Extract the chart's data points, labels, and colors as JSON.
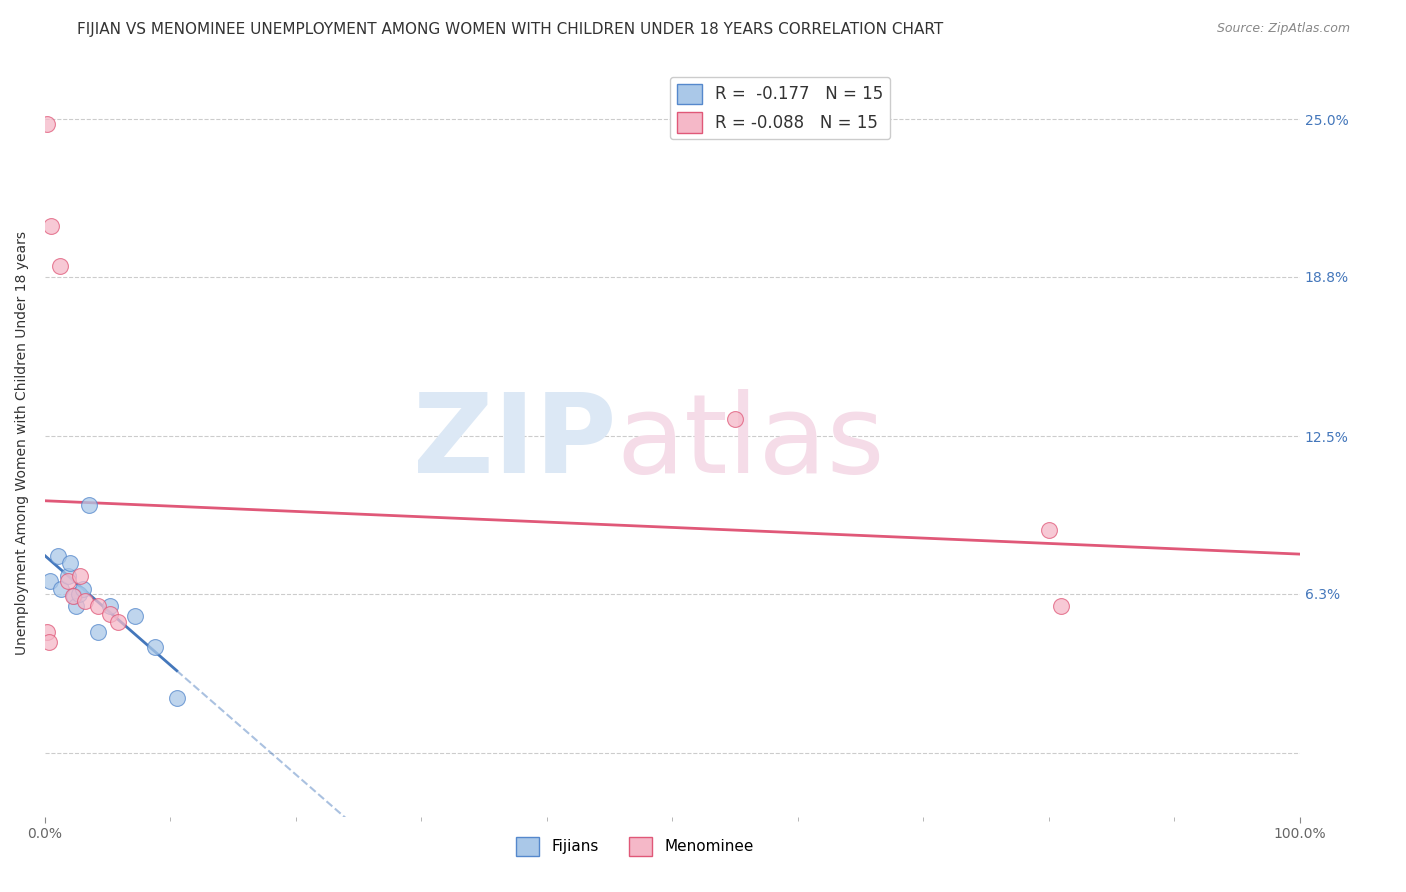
{
  "title": "FIJIAN VS MENOMINEE UNEMPLOYMENT AMONG WOMEN WITH CHILDREN UNDER 18 YEARS CORRELATION CHART",
  "source": "Source: ZipAtlas.com",
  "ylabel": "Unemployment Among Women with Children Under 18 years",
  "xlim": [
    0,
    100
  ],
  "ylim": [
    -2.5,
    27
  ],
  "background_color": "#ffffff",
  "grid_color": "#cccccc",
  "fijian_color": "#aac8e8",
  "fijian_edge_color": "#5588cc",
  "menominee_color": "#f5b8c8",
  "menominee_edge_color": "#e05878",
  "fijian_line_color": "#4477bb",
  "menominee_line_color": "#e05878",
  "fijian_R": -0.177,
  "fijian_N": 15,
  "menominee_R": -0.088,
  "menominee_N": 15,
  "fijian_x": [
    0.4,
    1.0,
    1.3,
    1.8,
    2.0,
    2.3,
    2.5,
    2.7,
    3.0,
    3.5,
    4.2,
    5.2,
    7.2,
    8.8,
    10.5
  ],
  "fijian_y": [
    6.8,
    7.8,
    6.5,
    7.0,
    7.5,
    6.2,
    5.8,
    6.3,
    6.5,
    9.8,
    4.8,
    5.8,
    5.4,
    4.2,
    2.2
  ],
  "menominee_x": [
    0.2,
    0.5,
    1.2,
    1.8,
    2.2,
    2.8,
    3.2,
    4.2,
    5.2,
    5.8,
    55.0,
    80.0,
    81.0,
    0.15,
    0.35
  ],
  "menominee_y": [
    24.8,
    20.8,
    19.2,
    6.8,
    6.2,
    7.0,
    6.0,
    5.8,
    5.5,
    5.2,
    13.2,
    8.8,
    5.8,
    4.8,
    4.4
  ],
  "ytick_positions": [
    0,
    6.3,
    12.5,
    18.8,
    25.0
  ],
  "ytick_labels_right": [
    "",
    "6.3%",
    "12.5%",
    "18.8%",
    "25.0%"
  ],
  "xtick_main": [
    0,
    100
  ],
  "xtick_minor": [
    10,
    20,
    30,
    40,
    50,
    60,
    70,
    80,
    90
  ],
  "scatter_size": 130,
  "title_fontsize": 11,
  "label_fontsize": 10,
  "tick_fontsize": 10,
  "legend_fontsize": 12,
  "watermark_color_blue": "#dce8f5",
  "watermark_color_pink": "#f5dce8"
}
